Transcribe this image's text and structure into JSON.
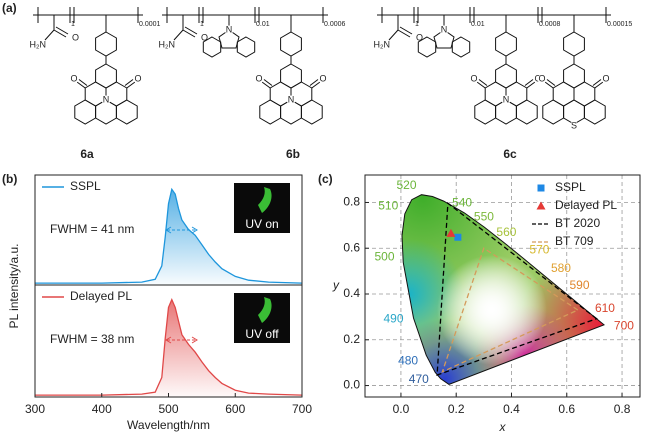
{
  "figure": {
    "panel_label": "(a)",
    "structures": [
      {
        "label": "6a",
        "units": [
          {
            "kind": "amide",
            "subscript": "1",
            "atoms": [
              "O",
              "H₂N"
            ]
          },
          {
            "kind": "acceptor",
            "subscript": "0.0001",
            "atoms": [
              "O",
              "O",
              "N"
            ]
          }
        ]
      },
      {
        "label": "6b",
        "units": [
          {
            "kind": "amide",
            "subscript": "1",
            "atoms": [
              "O",
              "H₂N"
            ]
          },
          {
            "kind": "carbazole",
            "subscript": "0.01",
            "atoms": [
              "N"
            ]
          },
          {
            "kind": "acceptor",
            "subscript": "0.0006",
            "atoms": [
              "O",
              "O",
              "N"
            ]
          }
        ]
      },
      {
        "label": "6c",
        "units": [
          {
            "kind": "amide",
            "subscript": "1",
            "atoms": [
              "O",
              "H₂N"
            ]
          },
          {
            "kind": "carbazole",
            "subscript": "0.01",
            "atoms": [
              "N"
            ]
          },
          {
            "kind": "acceptor",
            "subscript": "0.0008",
            "atoms": [
              "O",
              "O",
              "N"
            ]
          },
          {
            "kind": "sulfur",
            "subscript": "0.00015",
            "atoms": [
              "O",
              "O",
              "S"
            ]
          }
        ]
      }
    ]
  },
  "chart_data": [
    {
      "type": "line",
      "panel_label": "(b)",
      "x_label": "Wavelength/nm",
      "y_label": "PL intensity/a.u.",
      "xlim": [
        300,
        700
      ],
      "xticks": [
        300,
        400,
        500,
        600,
        700
      ],
      "ylim": [
        0,
        1.15
      ],
      "x": [
        300,
        400,
        460,
        480,
        490,
        495,
        500,
        505,
        510,
        515,
        520,
        530,
        540,
        550,
        560,
        570,
        580,
        600,
        620,
        650,
        700
      ],
      "series": [
        {
          "name": "SSPL",
          "color": "#1e96dc",
          "annotation": "FWHM = 41 nm",
          "inset": "UV on",
          "values": [
            0.02,
            0.02,
            0.03,
            0.06,
            0.2,
            0.5,
            0.85,
            1.0,
            0.95,
            0.8,
            0.68,
            0.58,
            0.52,
            0.42,
            0.32,
            0.24,
            0.17,
            0.09,
            0.05,
            0.03,
            0.02
          ]
        },
        {
          "name": "Delayed PL",
          "color": "#e04848",
          "annotation": "FWHM = 38 nm",
          "inset": "UV off",
          "values": [
            0.02,
            0.02,
            0.03,
            0.05,
            0.2,
            0.6,
            0.92,
            1.0,
            0.92,
            0.78,
            0.64,
            0.54,
            0.46,
            0.36,
            0.27,
            0.2,
            0.14,
            0.07,
            0.04,
            0.03,
            0.02
          ]
        }
      ]
    },
    {
      "type": "cie",
      "panel_label": "(c)",
      "x_label": "x",
      "y_label": "y",
      "xlim": [
        -0.13,
        0.865
      ],
      "ylim": [
        -0.05,
        0.92
      ],
      "xticks": [
        {
          "value": 0,
          "label": "0.0"
        },
        0.2,
        0.4,
        0.6,
        0.8
      ],
      "yticks": [
        {
          "value": 0,
          "label": "0.0"
        },
        0.2,
        0.4,
        0.6,
        0.8
      ],
      "grid": true,
      "locus": {
        "x": [
          0.1741,
          0.144,
          0.1241,
          0.0913,
          0.0454,
          0.0082,
          0.0039,
          0.0139,
          0.0389,
          0.0743,
          0.1142,
          0.1547,
          0.2296,
          0.3016,
          0.3731,
          0.4441,
          0.5125,
          0.5752,
          0.627,
          0.6658,
          0.6915,
          0.7347
        ],
        "values": [
          0.005,
          0.0297,
          0.0578,
          0.1327,
          0.295,
          0.5384,
          0.6548,
          0.7502,
          0.812,
          0.8338,
          0.8262,
          0.8059,
          0.7543,
          0.6923,
          0.6245,
          0.5547,
          0.4866,
          0.4242,
          0.3725,
          0.334,
          0.3083,
          0.2653
        ],
        "labels": [
          null,
          null,
          "470",
          "480",
          "490",
          "500",
          null,
          "510",
          null,
          "520",
          null,
          null,
          "540",
          "550",
          "560",
          "570",
          "580",
          "590",
          null,
          "610",
          null,
          "700"
        ],
        "label_colors": [
          null,
          null,
          "#2f5d9c",
          "#2f6fb8",
          "#2aa7c9",
          "#6bb53a",
          null,
          "#6bb53a",
          null,
          "#6bb53a",
          null,
          null,
          "#6bb53a",
          "#7cb83a",
          "#a7c23a",
          "#d6b82e",
          "#e0a030",
          "#e0862e",
          null,
          "#d9452e",
          null,
          "#d9452e"
        ]
      },
      "gamuts": [
        {
          "name": "BT 2020",
          "color": "#000000",
          "x": [
            0.708,
            0.17,
            0.131
          ],
          "values": [
            0.292,
            0.797,
            0.046
          ]
        },
        {
          "name": "BT 709",
          "color": "#d49a5a",
          "x": [
            0.64,
            0.3,
            0.15
          ],
          "values": [
            0.33,
            0.6,
            0.06
          ]
        }
      ],
      "series": [
        {
          "name": "SSPL",
          "color": "#1e88e5",
          "marker": "square",
          "x": [
            0.206
          ],
          "values": [
            0.648
          ]
        },
        {
          "name": "Delayed PL",
          "color": "#e53935",
          "marker": "triangle",
          "x": [
            0.181
          ],
          "values": [
            0.665
          ]
        }
      ]
    }
  ]
}
